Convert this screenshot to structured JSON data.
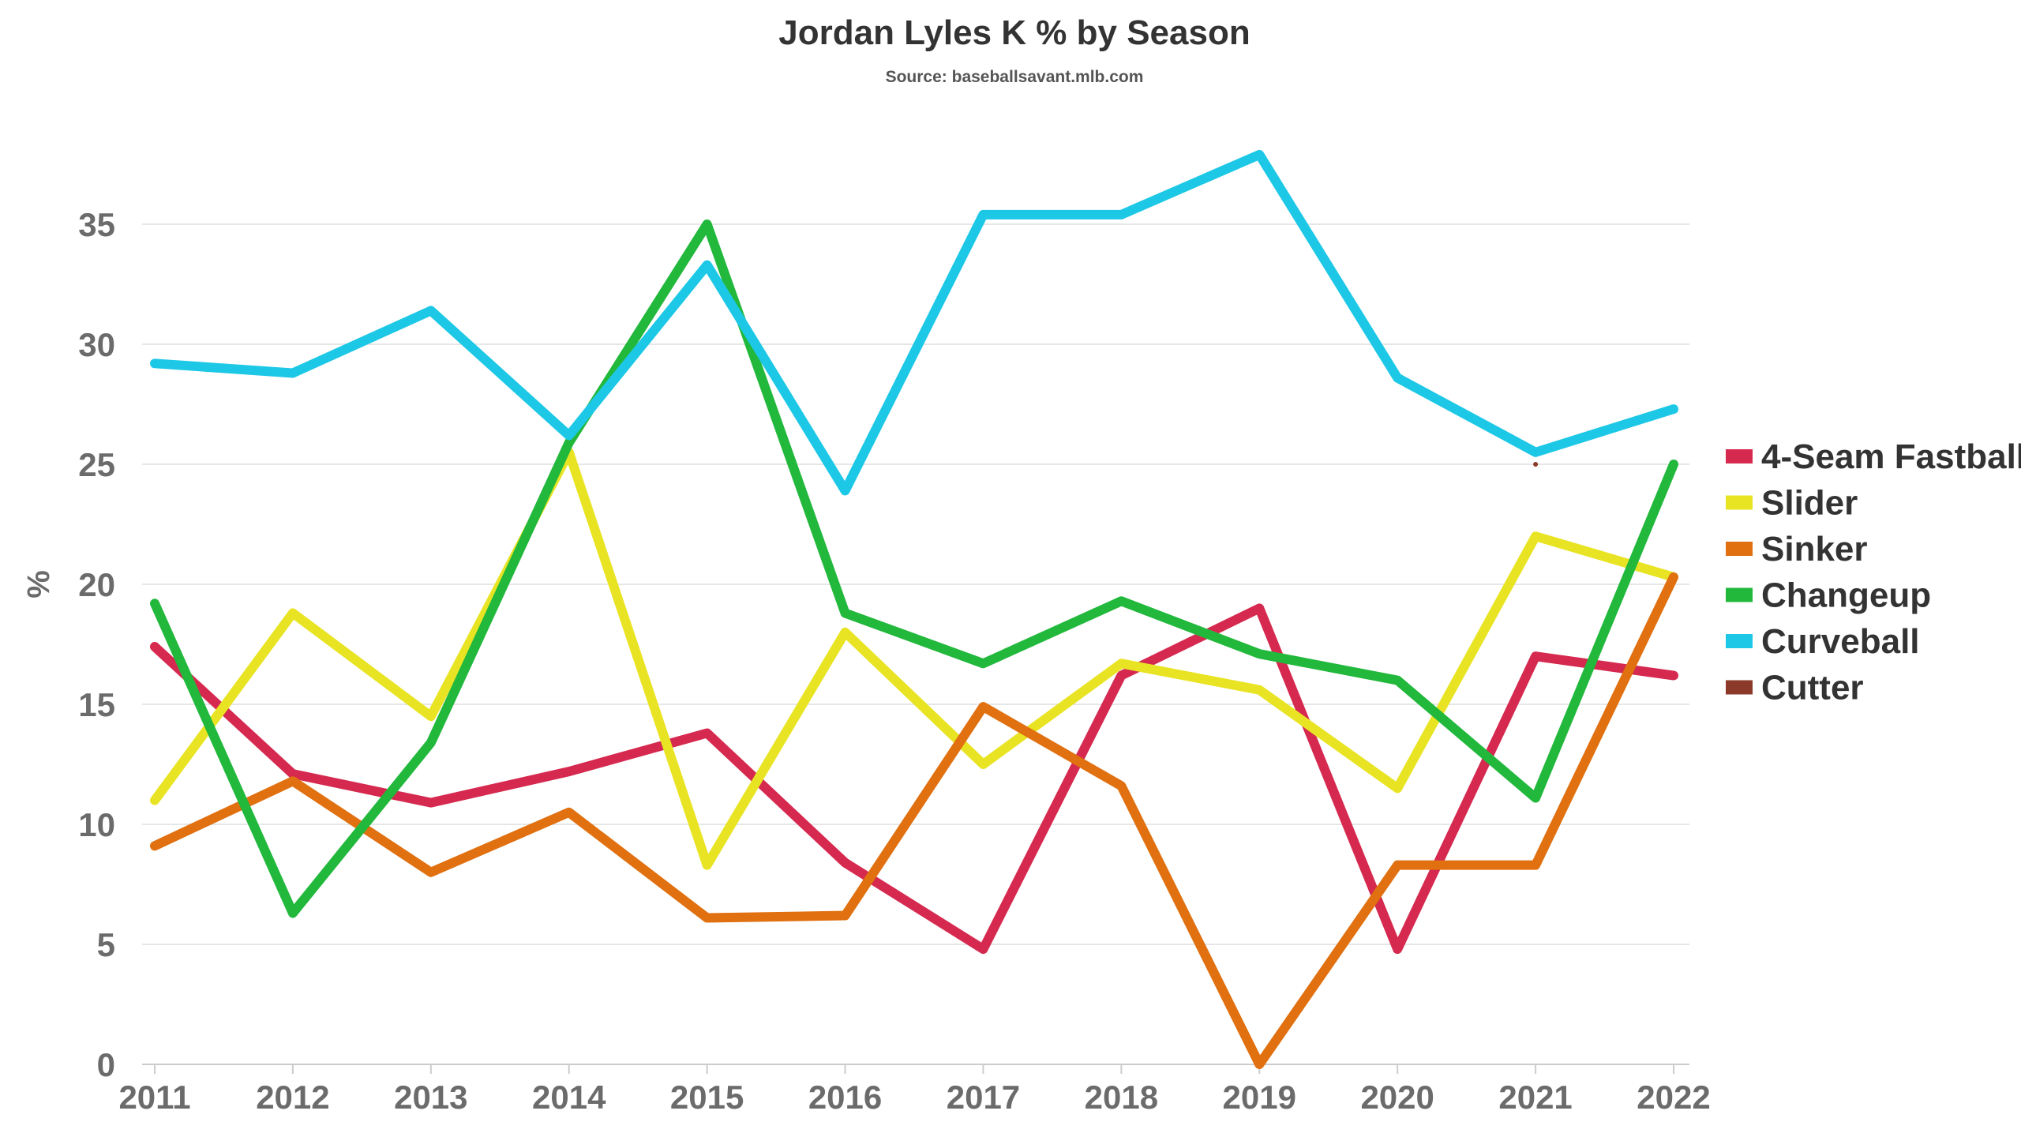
{
  "chart_data": {
    "type": "line",
    "title": "Jordan Lyles K % by Season",
    "subtitle": "Source: baseballsavant.mlb.com",
    "xlabel": "",
    "ylabel": "%",
    "categories": [
      "2011",
      "2012",
      "2013",
      "2014",
      "2015",
      "2016",
      "2017",
      "2018",
      "2019",
      "2020",
      "2021",
      "2022"
    ],
    "ylim": [
      0,
      40
    ],
    "yticks": [
      0,
      5,
      10,
      15,
      20,
      25,
      30,
      35
    ],
    "grid": true,
    "legend_position": "right",
    "series": [
      {
        "name": "4-Seam Fastball",
        "color": "#d6294f",
        "values": [
          17.4,
          12.1,
          10.9,
          12.2,
          13.8,
          8.4,
          4.8,
          16.2,
          19.0,
          4.8,
          17.0,
          16.2
        ]
      },
      {
        "name": "Slider",
        "color": "#e8e424",
        "values": [
          11.0,
          18.8,
          14.5,
          25.5,
          8.3,
          18.0,
          12.5,
          16.7,
          15.6,
          11.5,
          22.0,
          20.3
        ]
      },
      {
        "name": "Sinker",
        "color": "#e07010",
        "values": [
          9.1,
          11.8,
          8.0,
          10.5,
          6.1,
          6.2,
          14.9,
          11.6,
          0.0,
          8.3,
          8.3,
          20.3
        ]
      },
      {
        "name": "Changeup",
        "color": "#22b83c",
        "values": [
          19.2,
          6.3,
          13.4,
          25.9,
          35.0,
          18.8,
          16.7,
          19.3,
          17.1,
          16.0,
          11.1,
          25.0
        ]
      },
      {
        "name": "Curveball",
        "color": "#1cc8e6",
        "values": [
          29.2,
          28.8,
          31.4,
          26.2,
          33.3,
          23.9,
          35.4,
          35.4,
          37.9,
          28.6,
          25.5,
          27.3
        ]
      },
      {
        "name": "Cutter",
        "color": "#8b3a2a",
        "values": [
          null,
          null,
          null,
          null,
          null,
          null,
          null,
          null,
          null,
          null,
          25.0,
          null
        ]
      }
    ]
  }
}
